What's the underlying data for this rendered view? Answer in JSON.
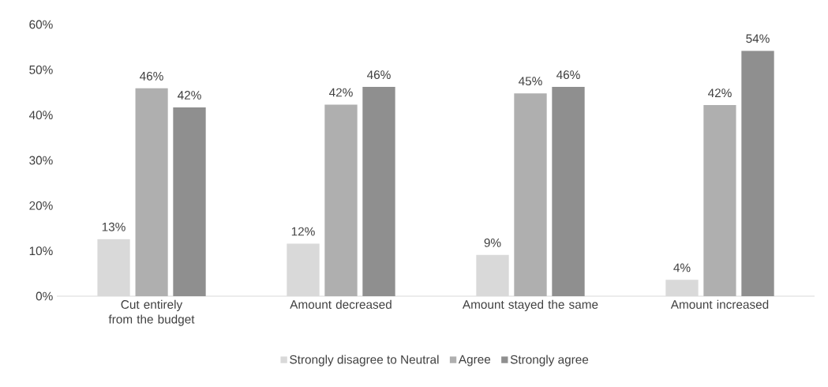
{
  "chart_data": {
    "type": "bar",
    "categories": [
      "Cut entirely from the budget",
      "Amount decreased",
      "Amount stayed the same",
      "Amount increased"
    ],
    "series": [
      {
        "name": "Strongly disagree to Neutral",
        "color": "#d9d9d9",
        "values": [
          12.6,
          11.6,
          9.1,
          3.6
        ],
        "value_labels": [
          "13%",
          "12%",
          "9%",
          "4%"
        ]
      },
      {
        "name": "Agree",
        "color": "#afafaf",
        "values": [
          45.9,
          42.3,
          44.8,
          42.2
        ],
        "value_labels": [
          "46%",
          "42%",
          "45%",
          "42%"
        ]
      },
      {
        "name": "Strongly agree",
        "color": "#8f8f8f",
        "values": [
          41.7,
          46.2,
          46.2,
          54.2
        ],
        "value_labels": [
          "42%",
          "46%",
          "46%",
          "54%"
        ]
      }
    ],
    "ylim": [
      0,
      60
    ],
    "yticks": [
      {
        "value": 0,
        "label": "0%"
      },
      {
        "value": 10,
        "label": "10%"
      },
      {
        "value": 20,
        "label": "20%"
      },
      {
        "value": 30,
        "label": "30%"
      },
      {
        "value": 40,
        "label": "40%"
      },
      {
        "value": 50,
        "label": "50%"
      },
      {
        "value": 60,
        "label": "60%"
      }
    ],
    "legend": "bottom"
  }
}
